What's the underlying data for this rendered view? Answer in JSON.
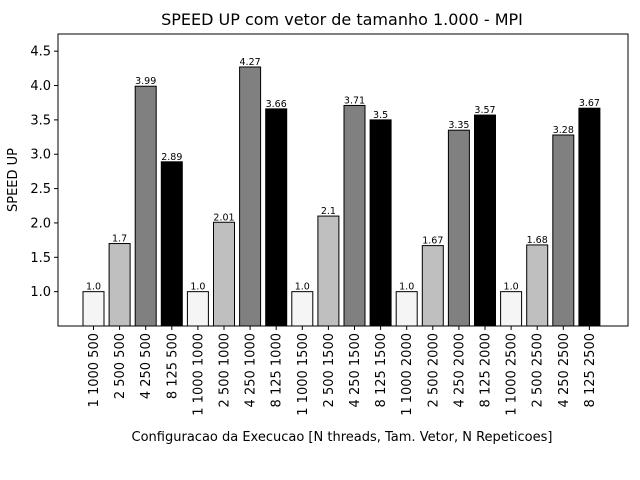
{
  "chart_data": {
    "type": "bar",
    "title": "SPEED UP com vetor de tamanho 1.000 - MPI",
    "xlabel": "Configuracao da Execucao [N threads, Tam. Vetor, N Repeticoes]",
    "ylabel": "SPEED UP",
    "ylim": [
      0.5,
      4.75
    ],
    "yticks": [
      "1.0",
      "1.5",
      "2.0",
      "2.5",
      "3.0",
      "3.5",
      "4.0",
      "4.5"
    ],
    "grid": false,
    "categories": [
      "1 1000 500",
      "2 500 500",
      "4 250 500",
      "8 125 500",
      "1 1000 1000",
      "2 500 1000",
      "4 250 1000",
      "8 125 1000",
      "1 1000 1500",
      "2 500 1500",
      "4 250 1500",
      "8 125 1500",
      "1 1000 2000",
      "2 500 2000",
      "4 250 2000",
      "8 125 2000",
      "1 1000 2500",
      "2 500 2500",
      "4 250 2500",
      "8 125 2500"
    ],
    "values": [
      1.0,
      1.7,
      3.99,
      2.89,
      1.0,
      2.01,
      4.27,
      3.66,
      1.0,
      2.1,
      3.71,
      3.5,
      1.0,
      1.67,
      3.35,
      3.57,
      1.0,
      1.68,
      3.28,
      3.67
    ],
    "value_labels": [
      "1.0",
      "1.7",
      "3.99",
      "2.89",
      "1.0",
      "2.01",
      "4.27",
      "3.66",
      "1.0",
      "2.1",
      "3.71",
      "3.5",
      "1.0",
      "1.67",
      "3.35",
      "3.57",
      "1.0",
      "1.68",
      "3.28",
      "3.67"
    ],
    "bar_colors": [
      "#f5f5f5",
      "#bfbfbf",
      "#808080",
      "#000000"
    ],
    "bar_edge_color": "#000000"
  }
}
